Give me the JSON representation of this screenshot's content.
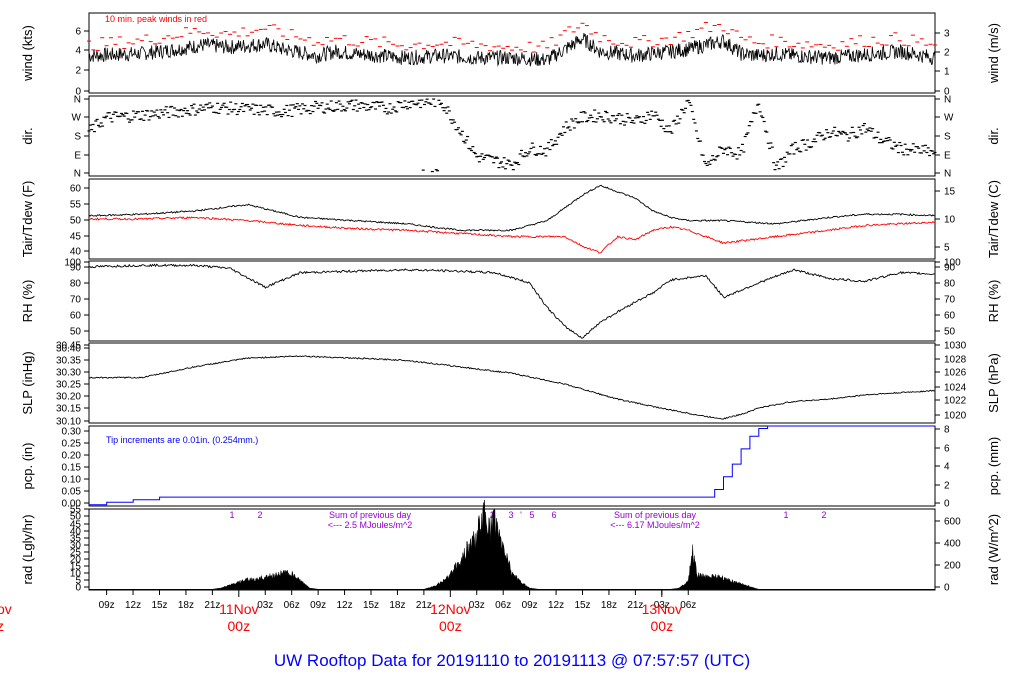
{
  "footer_title": "UW Rooftop Data for 20191110  to  20191113 @ 07:57:57  (UTC)",
  "colors": {
    "axis": "#000000",
    "dew": "#ff0000",
    "gust": "#ff0000",
    "precip": "#0000ff",
    "note_precip": "#0000ff",
    "solar_note": "#9400d3",
    "date_label": "#ff0000",
    "title": "#0000ff"
  },
  "x_axis": {
    "tick_labels": [
      "09z",
      "12z",
      "15z",
      "18z",
      "21z",
      "03z",
      "06z",
      "09z",
      "12z",
      "15z",
      "18z",
      "21z",
      "03z",
      "06z",
      "09z",
      "12z",
      "15z",
      "18z",
      "21z",
      "03z",
      "06z"
    ],
    "date_labels": [
      {
        "day": "11Nov",
        "hour": "00z"
      },
      {
        "day": "12Nov",
        "hour": "00z"
      },
      {
        "day": "13Nov",
        "hour": "00z"
      }
    ],
    "clipped_left_day": "ov",
    "clipped_left_hour": "z"
  },
  "panels": {
    "wind": {
      "ylabel_left": "wind (kts)",
      "ylabel_right": "wind (m/s)",
      "left_ticks": [
        "0",
        "2",
        "4",
        "6"
      ],
      "right_ticks": [
        "0",
        "1",
        "2",
        "3"
      ],
      "note": "10 min. peak winds in red"
    },
    "dir": {
      "ylabel_left": "dir.",
      "ylabel_right": "dir.",
      "left_ticks": [
        "N",
        "E",
        "S",
        "W",
        "N"
      ],
      "right_ticks": [
        "N",
        "E",
        "S",
        "W",
        "N"
      ]
    },
    "temp": {
      "ylabel_left": "Tair/Tdew (F)",
      "ylabel_right": "Tair/Tdew (C)",
      "left_ticks": [
        "40",
        "45",
        "50",
        "55",
        "60"
      ],
      "right_ticks": [
        "5",
        "10",
        "15"
      ]
    },
    "rh": {
      "ylabel_left": "RH (%)",
      "ylabel_right": "RH (%)",
      "left_ticks": [
        "50",
        "60",
        "70",
        "80",
        "90",
        "100"
      ],
      "right_ticks": [
        "50",
        "60",
        "70",
        "80",
        "90",
        "100"
      ]
    },
    "slp": {
      "ylabel_left": "SLP (inHg)",
      "ylabel_right": "SLP (hPa)",
      "left_ticks": [
        "30.10",
        "30.15",
        "30.20",
        "30.25",
        "30.30",
        "30.35",
        "30.40",
        "30.45"
      ],
      "right_ticks": [
        "1020",
        "1022",
        "1024",
        "1026",
        "1028",
        "1030"
      ]
    },
    "pcp": {
      "ylabel_left": "pcp. (in)",
      "ylabel_right": "pcp. (mm)",
      "left_ticks": [
        "0.00",
        "0.05",
        "0.10",
        "0.15",
        "0.20",
        "0.25",
        "0.30"
      ],
      "right_ticks": [
        "0",
        "2",
        "4",
        "6",
        "8"
      ],
      "note": "Tip increments are 0.01in. (0.254mm.)"
    },
    "rad": {
      "ylabel_left": "rad (Lgly/hr)",
      "ylabel_right": "rad (W/m^2)",
      "left_ticks": [
        "0",
        "5",
        "10",
        "15",
        "20",
        "25",
        "30",
        "35",
        "40",
        "45",
        "50",
        "55"
      ],
      "right_ticks": [
        "0",
        "200",
        "400",
        "600"
      ],
      "sum_notes": [
        {
          "line1": "Sum of previous day",
          "line2": "<--- 2.5 MJoules/m^2"
        },
        {
          "line1": "Sum of previous day",
          "line2": "<--- 6.17 MJoules/m^2"
        }
      ],
      "sky_marks": [
        "1",
        "2",
        "1",
        "3",
        "'",
        "5",
        "6",
        "1",
        "2"
      ]
    }
  },
  "chart_data": [
    {
      "type": "line",
      "panel": "wind",
      "x_unit": "hours since 2019-11-10 07:00 UTC",
      "ylim": [
        -0.3,
        7.2
      ],
      "series": [
        {
          "role": "wind speed (kts)",
          "x": [
            0,
            6,
            10,
            13,
            16,
            20,
            22,
            26,
            28,
            30,
            36,
            40,
            44,
            48,
            52,
            54,
            56,
            58,
            60,
            62,
            64,
            66,
            68,
            70,
            72,
            74,
            76,
            78,
            80,
            84,
            88,
            92,
            96
          ],
          "values": [
            3.2,
            3.4,
            3.8,
            4.2,
            4.0,
            4.3,
            3.8,
            3.2,
            3.6,
            3.4,
            3.0,
            3.2,
            3.0,
            3.0,
            2.8,
            3.8,
            4.8,
            3.6,
            3.4,
            3.2,
            3.4,
            3.6,
            3.8,
            4.2,
            4.6,
            3.4,
            3.2,
            3.4,
            3.2,
            3.0,
            3.3,
            3.6,
            3.0
          ]
        },
        {
          "role": "10 min. peak winds (kts)",
          "x": [
            0,
            6,
            10,
            13,
            16,
            20,
            22,
            26,
            28,
            30,
            36,
            40,
            44,
            48,
            52,
            54,
            56,
            58,
            60,
            62,
            64,
            66,
            68,
            70,
            72,
            74,
            76,
            78,
            80,
            84,
            88,
            92,
            96
          ],
          "values": [
            4.2,
            4.6,
            5.2,
            5.6,
            5.2,
            5.8,
            5.2,
            4.6,
            4.8,
            4.6,
            4.2,
            4.4,
            4.2,
            4.0,
            4.0,
            5.2,
            6.2,
            5.0,
            4.6,
            4.4,
            4.6,
            4.8,
            5.2,
            5.8,
            6.0,
            4.8,
            4.4,
            4.6,
            4.4,
            4.2,
            4.6,
            4.8,
            4.2
          ]
        }
      ]
    },
    {
      "type": "scatter",
      "panel": "dir",
      "categories": [
        "N",
        "E",
        "S",
        "W",
        "N"
      ],
      "series": [
        {
          "role": "direction (deg)",
          "x": [
            0,
            2,
            4,
            8,
            10,
            14,
            18,
            22,
            26,
            30,
            34,
            36,
            40,
            44,
            48,
            50,
            52,
            54,
            56,
            58,
            60,
            62,
            64,
            66,
            68,
            70,
            72,
            74,
            76,
            78,
            80,
            82,
            84,
            86,
            88,
            90,
            92,
            94,
            96
          ],
          "values": [
            200,
            270,
            275,
            290,
            300,
            320,
            310,
            300,
            320,
            330,
            315,
            340,
            350,
            80,
            40,
            120,
            110,
            220,
            270,
            280,
            270,
            250,
            290,
            200,
            350,
            30,
            120,
            90,
            350,
            20,
            120,
            150,
            200,
            180,
            220,
            160,
            120,
            110,
            100
          ]
        }
      ]
    },
    {
      "type": "line",
      "panel": "temp",
      "ylim": [
        38,
        63
      ],
      "series": [
        {
          "role": "air temperature (F)",
          "x": [
            0,
            6,
            12,
            18,
            24,
            30,
            36,
            42,
            48,
            52,
            54,
            56,
            58,
            60,
            62,
            64,
            66,
            68,
            72,
            78,
            84,
            88,
            92,
            96
          ],
          "values": [
            51.5,
            52,
            53,
            55,
            51,
            50,
            49,
            47,
            47,
            50,
            54,
            58,
            61,
            59,
            57,
            53,
            51,
            50,
            50,
            49,
            51,
            52,
            52,
            51.5
          ]
        },
        {
          "role": "dew point (F)",
          "x": [
            0,
            6,
            12,
            18,
            24,
            30,
            36,
            42,
            48,
            52,
            54,
            56,
            58,
            60,
            62,
            64,
            66,
            68,
            72,
            78,
            84,
            88,
            92,
            96
          ],
          "values": [
            50.5,
            50.5,
            51,
            50,
            48.5,
            47.5,
            47,
            46,
            45,
            45,
            45,
            42,
            40,
            45,
            44,
            47,
            48,
            47,
            43,
            45,
            47,
            48.5,
            49,
            49.5
          ]
        }
      ]
    },
    {
      "type": "line",
      "panel": "rh",
      "ylim": [
        45,
        100
      ],
      "series": [
        {
          "role": "relative humidity (%)",
          "x": [
            0,
            6,
            12,
            16,
            20,
            24,
            30,
            36,
            42,
            46,
            50,
            52,
            54,
            56,
            58,
            60,
            62,
            64,
            66,
            70,
            72,
            76,
            80,
            84,
            88,
            92,
            96
          ],
          "values": [
            96,
            97,
            97,
            95,
            82,
            92,
            93,
            94,
            93,
            92,
            85,
            68,
            55,
            47,
            58,
            65,
            72,
            78,
            87,
            90,
            75,
            85,
            94,
            88,
            86,
            92,
            91
          ]
        }
      ]
    },
    {
      "type": "line",
      "panel": "slp",
      "ylim": [
        30.09,
        30.46
      ],
      "series": [
        {
          "role": "sea level pressure (inHg)",
          "x": [
            0,
            6,
            12,
            18,
            24,
            30,
            36,
            42,
            48,
            54,
            60,
            66,
            70,
            72,
            74,
            76,
            80,
            84,
            88,
            92,
            96
          ],
          "values": [
            30.3,
            30.3,
            30.35,
            30.39,
            30.4,
            30.39,
            30.38,
            30.35,
            30.32,
            30.27,
            30.2,
            30.15,
            30.12,
            30.11,
            30.13,
            30.16,
            30.19,
            30.2,
            30.22,
            30.23,
            30.24
          ]
        }
      ]
    },
    {
      "type": "line",
      "panel": "pcp",
      "ylim": [
        -0.005,
        0.31
      ],
      "series": [
        {
          "role": "cumulative precipitation (in)",
          "x": [
            0,
            2,
            2.01,
            5,
            5.01,
            8,
            8.01,
            70,
            71,
            72,
            73,
            74,
            75,
            76,
            77,
            78,
            96
          ],
          "values": [
            0.0,
            0.0,
            0.01,
            0.01,
            0.02,
            0.02,
            0.03,
            0.03,
            0.06,
            0.11,
            0.16,
            0.22,
            0.27,
            0.3,
            0.31,
            0.31,
            0.31
          ]
        }
      ]
    },
    {
      "type": "area",
      "panel": "rad",
      "ylim": [
        -0.5,
        57
      ],
      "series": [
        {
          "role": "solar radiation (Lgly/hr)",
          "x": [
            0,
            14,
            15,
            16,
            17,
            18,
            19,
            20,
            21,
            22,
            23,
            24,
            25,
            26,
            38,
            39,
            40,
            41,
            42,
            43,
            44,
            44.5,
            45,
            45.5,
            46,
            46.5,
            47,
            47.5,
            48,
            49,
            50,
            51,
            52,
            66,
            67,
            68,
            68.5,
            69,
            70,
            71,
            72,
            73,
            74,
            75,
            76,
            96
          ],
          "values": [
            0,
            0,
            1,
            3,
            5,
            7,
            7,
            9,
            10,
            12,
            11,
            6,
            1,
            0,
            0,
            2,
            5,
            10,
            20,
            30,
            38,
            50,
            55,
            42,
            52,
            38,
            30,
            22,
            12,
            5,
            1,
            0,
            0,
            0,
            1,
            6,
            28,
            10,
            9,
            10,
            8,
            6,
            4,
            2,
            0,
            0
          ]
        }
      ]
    }
  ]
}
